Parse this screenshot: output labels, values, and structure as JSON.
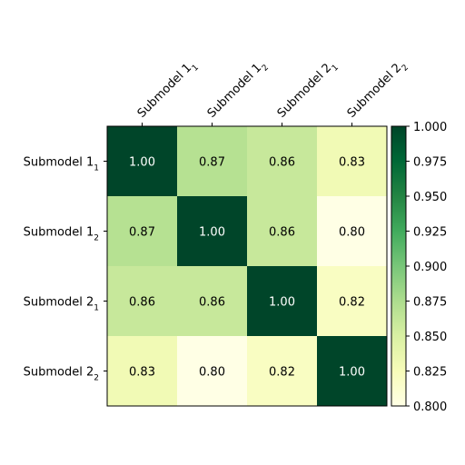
{
  "chart_data": {
    "type": "heatmap",
    "title": "",
    "xlabel": "",
    "ylabel": "",
    "labels": [
      {
        "base": "Submodel 1",
        "sub": "1"
      },
      {
        "base": "Submodel 1",
        "sub": "2"
      },
      {
        "base": "Submodel 2",
        "sub": "1"
      },
      {
        "base": "Submodel 2",
        "sub": "2"
      }
    ],
    "values": [
      [
        1.0,
        0.87,
        0.86,
        0.83
      ],
      [
        0.87,
        1.0,
        0.86,
        0.8
      ],
      [
        0.86,
        0.86,
        1.0,
        0.82
      ],
      [
        0.83,
        0.8,
        0.82,
        1.0
      ]
    ],
    "value_format_decimals": 2,
    "x_tick_position": "top",
    "x_tick_rotation_deg": -45,
    "colormap": "YlGn",
    "colorbar": {
      "range": [
        0.8,
        1.0
      ],
      "ticks": [
        "1.000",
        "0.975",
        "0.950",
        "0.925",
        "0.900",
        "0.875",
        "0.850",
        "0.825",
        "0.800"
      ],
      "placement": "right"
    },
    "grid": false,
    "text_colors": {
      "dark": "#000000",
      "light": "#ffffff"
    }
  }
}
